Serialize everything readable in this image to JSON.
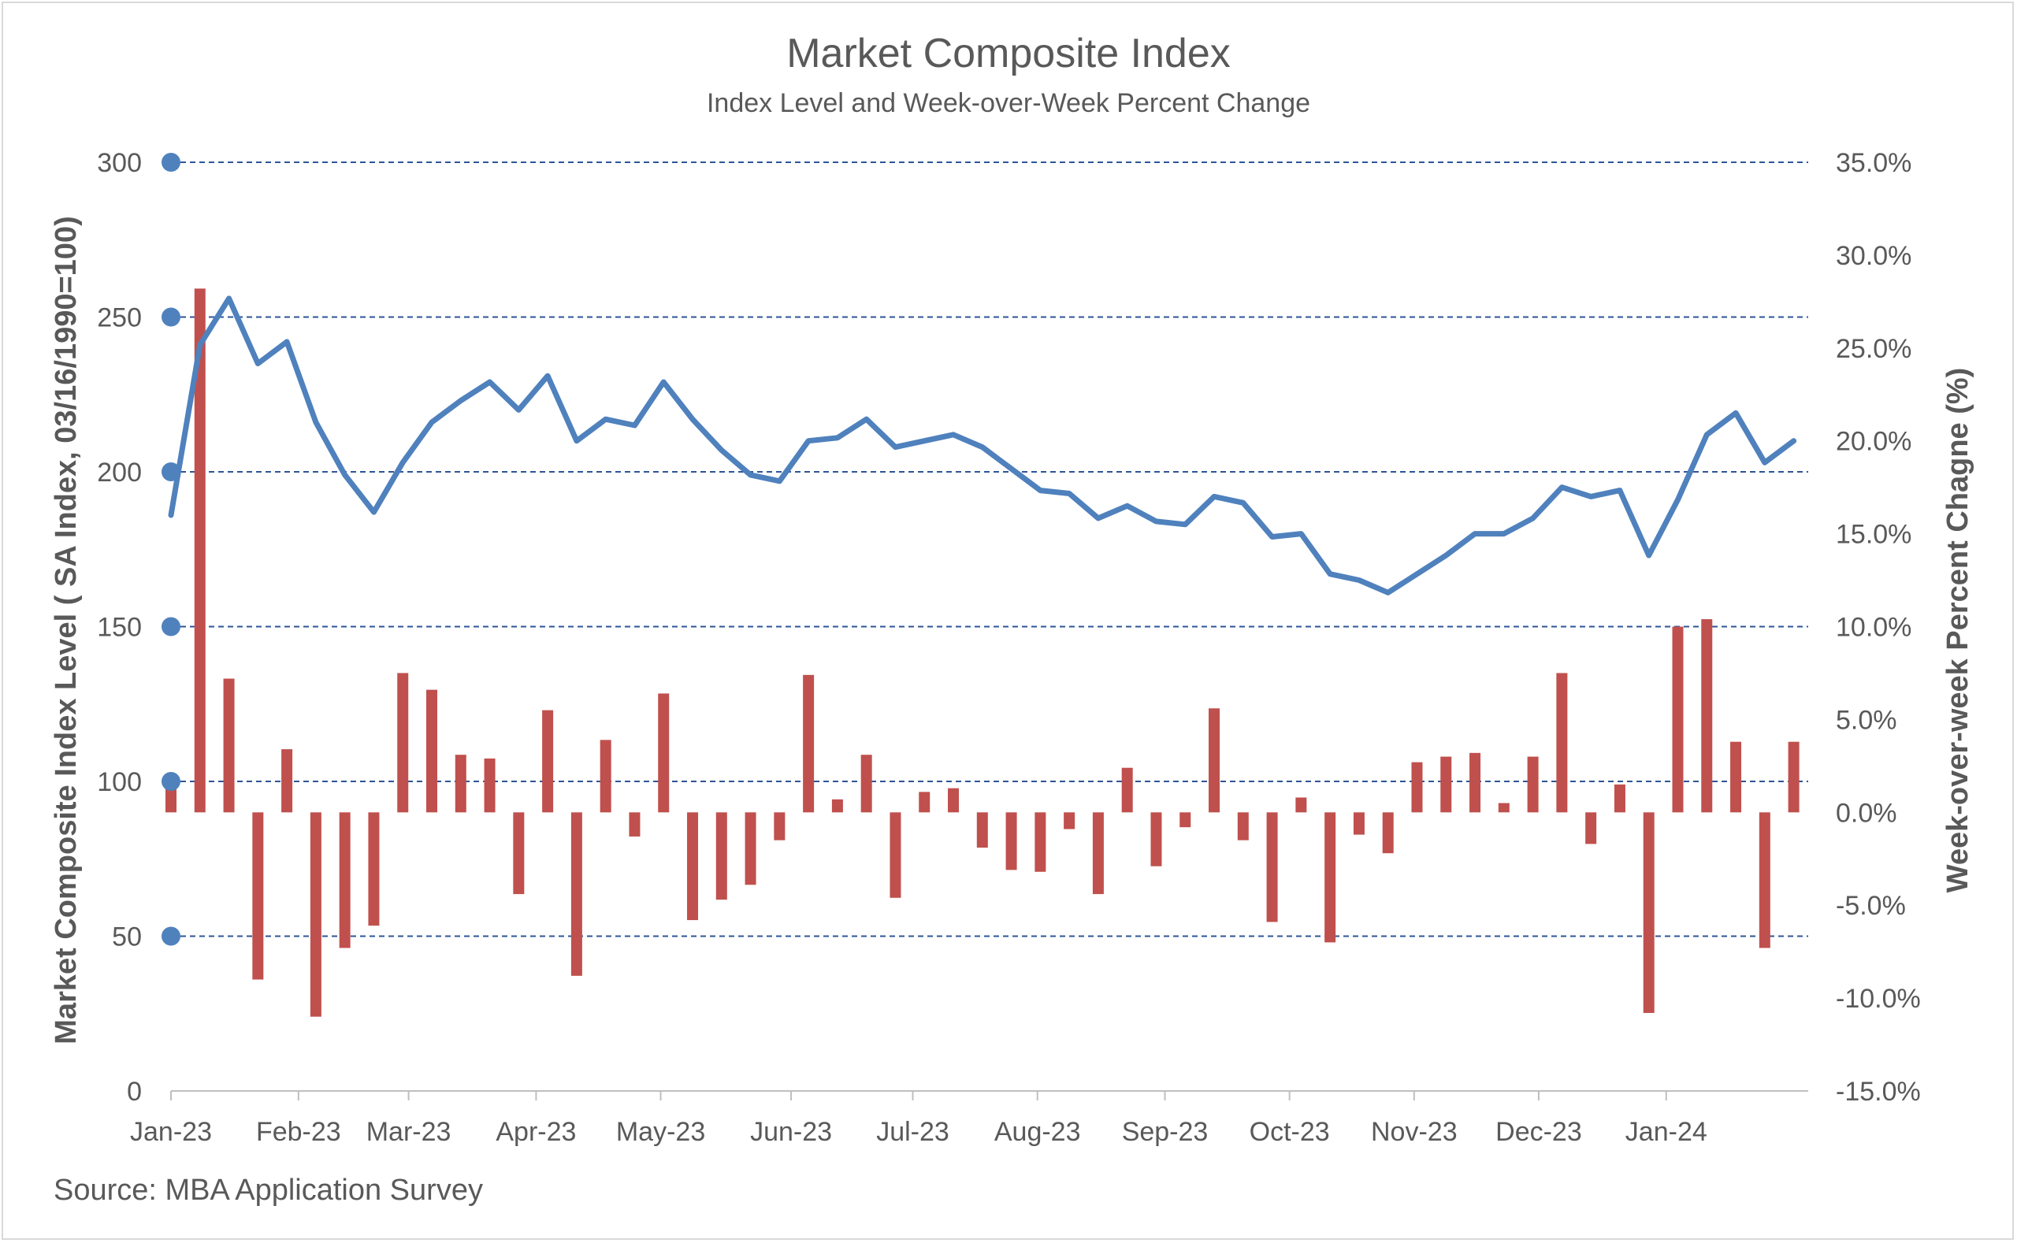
{
  "title": "Market Composite Index",
  "subtitle": "Index Level and Week-over-Week Percent Change",
  "source": "Source: MBA Application Survey",
  "colors": {
    "index_line": "#4f81bd",
    "pct_bars": "#c0504d",
    "grid": "#2e5597",
    "text": "#595959"
  },
  "chart_data": {
    "type": "bar+line",
    "ylabel_left": "Market Composite Index Level ( SA Index, 03/16/1990=100)",
    "ylabel_right": "Week-over-week Percent Chagne (%)",
    "y_left": {
      "min": 0,
      "max": 300,
      "ticks": [
        "0",
        "50",
        "100",
        "150",
        "200",
        "250",
        "300"
      ]
    },
    "y_right": {
      "min": -15,
      "max": 35,
      "ticks": [
        "-15.0%",
        "-10.0%",
        "-5.0%",
        "0.0%",
        "5.0%",
        "10.0%",
        "15.0%",
        "20.0%",
        "25.0%",
        "30.0%",
        "35.0%"
      ]
    },
    "x_ticks": [
      "Jan-23",
      "Feb-23",
      "Mar-23",
      "Apr-23",
      "May-23",
      "Jun-23",
      "Jul-23",
      "Aug-23",
      "Sep-23",
      "Oct-23",
      "Nov-23",
      "Dec-23",
      "Jan-24"
    ],
    "x_tick_weeks": [
      0,
      4.4,
      8.2,
      12.6,
      16.9,
      21.4,
      25.6,
      29.9,
      34.3,
      38.6,
      42.9,
      47.2,
      51.6
    ],
    "grid": "dashed horizontal lines at left-axis ticks",
    "series": [
      {
        "name": "Index",
        "axis": "left",
        "kind": "line",
        "values": [
          186,
          241,
          256,
          235,
          242,
          216,
          199,
          187,
          203,
          216,
          223,
          229,
          220,
          231,
          210,
          217,
          215,
          229,
          217,
          207,
          199,
          197,
          210,
          211,
          217,
          208,
          210,
          212,
          208,
          201,
          194,
          193,
          185,
          189,
          184,
          183,
          192,
          190,
          179,
          180,
          167,
          165,
          161,
          167,
          173,
          180,
          180,
          185,
          195,
          192,
          194,
          173,
          191,
          212,
          219,
          203,
          210
        ]
      },
      {
        "name": "Week-over-week % change",
        "axis": "right",
        "kind": "bar",
        "values": [
          1.5,
          28.2,
          7.2,
          -9.0,
          3.4,
          -11.0,
          -7.3,
          -6.1,
          7.5,
          6.6,
          3.1,
          2.9,
          -4.4,
          5.5,
          -8.8,
          3.9,
          -1.3,
          6.4,
          -5.8,
          -4.7,
          -3.9,
          -1.5,
          7.4,
          0.7,
          3.1,
          -4.6,
          1.1,
          1.3,
          -1.9,
          -3.1,
          -3.2,
          -0.9,
          -4.4,
          2.4,
          -2.9,
          -0.8,
          5.6,
          -1.5,
          -5.9,
          0.8,
          -7.0,
          -1.2,
          -2.2,
          2.7,
          3.0,
          3.2,
          0.5,
          3.0,
          7.5,
          -1.7,
          1.5,
          -10.8,
          10.0,
          10.4,
          3.8,
          -7.3,
          3.8
        ]
      }
    ]
  }
}
